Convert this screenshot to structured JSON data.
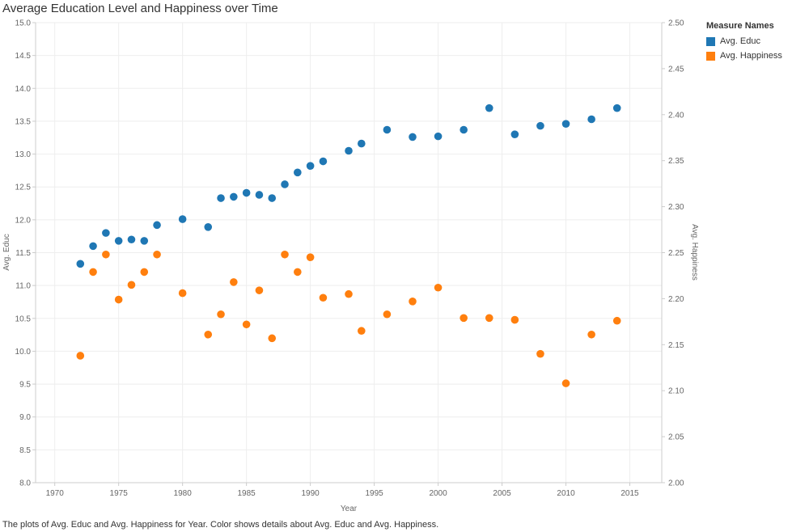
{
  "title": "Average Education Level and Happiness over Time",
  "caption": "The plots of Avg. Educ and Avg. Happiness for Year.  Color shows details about Avg. Educ and Avg. Happiness.",
  "legend": {
    "title": "Measure Names",
    "items": [
      {
        "label": "Avg. Educ",
        "color": "#1f77b4"
      },
      {
        "label": "Avg. Happiness",
        "color": "#ff7f0e"
      }
    ]
  },
  "chart_data": {
    "type": "scatter",
    "title": "Average Education Level and Happiness over Time",
    "xlabel": "Year",
    "ylabel_left": "Avg. Educ",
    "ylabel_right": "Avg. Happiness",
    "xlim": [
      1968.5,
      1818
    ],
    "xticks": [
      1970,
      1975,
      1980,
      1985,
      1990,
      1995,
      2000,
      2005,
      2010,
      2015
    ],
    "ylim_left": [
      8.0,
      15.0
    ],
    "yticks_left": [
      "8.0",
      "8.5",
      "9.0",
      "9.5",
      "10.0",
      "10.5",
      "11.0",
      "11.5",
      "12.0",
      "12.5",
      "13.0",
      "13.5",
      "14.0",
      "14.5",
      "15.0"
    ],
    "ylim_right": [
      2.0,
      2.5
    ],
    "yticks_right": [
      "2.00",
      "2.05",
      "2.10",
      "2.15",
      "2.20",
      "2.25",
      "2.30",
      "2.35",
      "2.40",
      "2.45",
      "2.50"
    ],
    "grid": true,
    "legend_position": "right",
    "series": [
      {
        "name": "Avg. Educ",
        "axis": "left",
        "color": "#1f77b4",
        "x": [
          1972,
          1973,
          1974,
          1975,
          1976,
          1977,
          1978,
          1980,
          1982,
          1983,
          1984,
          1985,
          1986,
          1987,
          1988,
          1989,
          1990,
          1991,
          1993,
          1994,
          1996,
          1998,
          2000,
          2002,
          2004,
          2006,
          2008,
          2010,
          2012,
          2014
        ],
        "y": [
          11.33,
          11.6,
          11.8,
          11.68,
          11.7,
          11.68,
          11.92,
          12.01,
          11.89,
          12.33,
          12.35,
          12.41,
          12.38,
          12.33,
          12.54,
          12.72,
          12.82,
          12.89,
          13.05,
          13.16,
          13.37,
          13.26,
          13.27,
          13.37,
          13.7,
          13.3,
          13.43,
          13.46,
          13.53,
          13.7
        ]
      },
      {
        "name": "Avg. Happiness",
        "axis": "right",
        "color": "#ff7f0e",
        "x": [
          1972,
          1973,
          1974,
          1975,
          1976,
          1977,
          1978,
          1980,
          1982,
          1983,
          1984,
          1985,
          1986,
          1987,
          1988,
          1989,
          1990,
          1991,
          1993,
          1994,
          1996,
          1998,
          2000,
          2002,
          2004,
          2006,
          2008,
          2010,
          2012,
          2014
        ],
        "y": [
          2.138,
          2.229,
          2.248,
          2.199,
          2.215,
          2.229,
          2.248,
          2.206,
          2.161,
          2.183,
          2.218,
          2.172,
          2.209,
          2.157,
          2.248,
          2.229,
          2.245,
          2.201,
          2.205,
          2.165,
          2.183,
          2.197,
          2.212,
          2.179,
          2.179,
          2.177,
          2.14,
          2.108,
          2.161,
          2.176
        ]
      }
    ]
  }
}
